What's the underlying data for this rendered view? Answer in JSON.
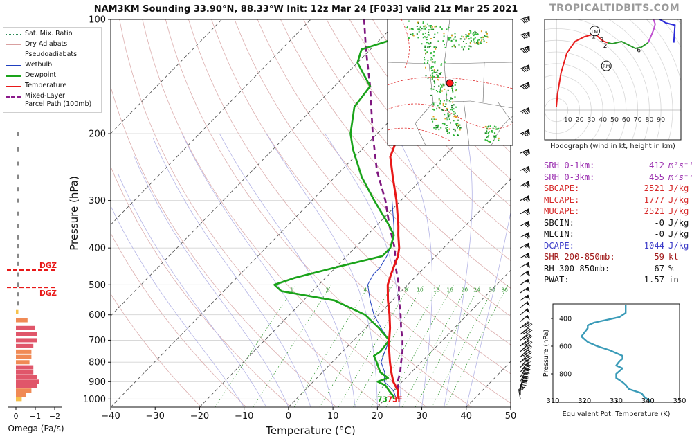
{
  "title": "NAM3KM Sounding 33.90°N, 88.33°W Init: 12z Mar 24 [F033] valid 21z Mar 25 2021",
  "brand": "TROPICALTIDBITS.COM",
  "legend": [
    {
      "label": "Sat. Mix. Ratio",
      "color": "#2e8b57",
      "style": "dotted"
    },
    {
      "label": "Dry Adiabats",
      "color": "#d9a0a0",
      "style": "solid"
    },
    {
      "label": "Pseudoadiabats",
      "color": "#a6a6e0",
      "style": "solid"
    },
    {
      "label": "Wetbulb",
      "color": "#1f3fbf",
      "style": "solid"
    },
    {
      "label": "Dewpoint",
      "color": "#1aa31a",
      "style": "solid"
    },
    {
      "label": "Temperature",
      "color": "#e81818",
      "style": "solid"
    },
    {
      "label": "Mixed-Layer\nParcel Path (100mb)",
      "color": "#8b1a8b",
      "style": "dashed"
    }
  ],
  "colors": {
    "temperature": "#e81818",
    "dewpoint": "#1aa31a",
    "wetbulb": "#1f3fbf",
    "parcel": "#7f167f",
    "dgz": "#e81818",
    "thetae": "#3a9bb8",
    "omega_gray": "#888888"
  },
  "surface": {
    "dewpoint_label": "73",
    "temp_label": "73F",
    "dewpoint_color": "#1aa31a",
    "temp_color": "#e81818"
  },
  "chart_data": [
    {
      "type": "line",
      "name": "skew-t",
      "xlabel": "Temperature (°C)",
      "ylabel": "Pressure (hPa)",
      "xlim": [
        -40,
        50
      ],
      "ylim": [
        1050,
        100
      ],
      "y_scale": "log",
      "xticks": [
        -40,
        -30,
        -20,
        -10,
        0,
        10,
        20,
        30,
        40,
        50
      ],
      "yticks": [
        100,
        200,
        300,
        400,
        500,
        600,
        700,
        800,
        900,
        1000
      ],
      "mixing_ratio_labels": [
        "1",
        "2",
        "4",
        "6",
        "8",
        "10",
        "13",
        "16",
        "20",
        "24",
        "30",
        "36"
      ],
      "series": [
        {
          "name": "Temperature",
          "points": [
            [
              1000,
              23
            ],
            [
              950,
              21
            ],
            [
              900,
              18
            ],
            [
              850,
              15.5
            ],
            [
              800,
              13
            ],
            [
              750,
              10.5
            ],
            [
              700,
              8
            ],
            [
              650,
              5.5
            ],
            [
              600,
              2.5
            ],
            [
              550,
              -1
            ],
            [
              500,
              -4.5
            ],
            [
              470,
              -6
            ],
            [
              450,
              -7
            ],
            [
              420,
              -8.5
            ],
            [
              400,
              -10
            ],
            [
              370,
              -13
            ],
            [
              350,
              -15
            ],
            [
              300,
              -21
            ],
            [
              260,
              -27
            ],
            [
              230,
              -32
            ],
            [
              210,
              -34
            ],
            [
              200,
              -37
            ],
            [
              180,
              -41
            ],
            [
              150,
              -45
            ],
            [
              130,
              -49
            ],
            [
              110,
              -51
            ],
            [
              100,
              -55
            ]
          ]
        },
        {
          "name": "Dewpoint",
          "points": [
            [
              1000,
              22
            ],
            [
              980,
              21
            ],
            [
              950,
              19
            ],
            [
              920,
              17
            ],
            [
              900,
              14.5
            ],
            [
              880,
              16
            ],
            [
              850,
              13
            ],
            [
              800,
              10
            ],
            [
              770,
              8
            ],
            [
              750,
              8.5
            ],
            [
              700,
              8
            ],
            [
              650,
              3
            ],
            [
              600,
              -3
            ],
            [
              550,
              -13
            ],
            [
              520,
              -27
            ],
            [
              500,
              -30
            ],
            [
              480,
              -27
            ],
            [
              450,
              -20
            ],
            [
              420,
              -12
            ],
            [
              400,
              -12
            ],
            [
              370,
              -14
            ],
            [
              350,
              -17
            ],
            [
              300,
              -26
            ],
            [
              260,
              -34
            ],
            [
              220,
              -42
            ],
            [
              200,
              -46
            ],
            [
              170,
              -51
            ],
            [
              150,
              -52
            ],
            [
              130,
              -60
            ],
            [
              120,
              -62
            ],
            [
              110,
              -55
            ],
            [
              100,
              -53
            ]
          ]
        },
        {
          "name": "Wetbulb",
          "points": [
            [
              1000,
              22.5
            ],
            [
              950,
              20
            ],
            [
              900,
              16
            ],
            [
              850,
              14
            ],
            [
              800,
              11
            ],
            [
              750,
              9.5
            ],
            [
              700,
              8
            ],
            [
              650,
              3.5
            ],
            [
              600,
              -1
            ],
            [
              550,
              -5
            ],
            [
              500,
              -9
            ],
            [
              470,
              -10
            ],
            [
              450,
              -10
            ],
            [
              420,
              -11
            ],
            [
              400,
              -12
            ],
            [
              370,
              -14
            ],
            [
              350,
              -16
            ],
            [
              300,
              -22
            ]
          ]
        },
        {
          "name": "Mixed-Layer Parcel Path (100mb)",
          "points": [
            [
              1000,
              23
            ],
            [
              950,
              21
            ],
            [
              900,
              19
            ],
            [
              850,
              17.5
            ],
            [
              800,
              15.5
            ],
            [
              750,
              13.5
            ],
            [
              700,
              11
            ],
            [
              650,
              8
            ],
            [
              600,
              5
            ],
            [
              550,
              1.5
            ],
            [
              500,
              -2
            ],
            [
              450,
              -6.5
            ],
            [
              400,
              -11
            ],
            [
              350,
              -17
            ],
            [
              300,
              -23.5
            ],
            [
              250,
              -32
            ],
            [
              200,
              -41
            ],
            [
              150,
              -52
            ],
            [
              120,
              -61
            ],
            [
              100,
              -68
            ]
          ]
        }
      ]
    },
    {
      "type": "line",
      "name": "hodograph",
      "title": "Hodograph (wind in kt, height in km)",
      "x_tick_labels": [
        "10",
        "20",
        "30",
        "40",
        "50",
        "60",
        "70",
        "80",
        "90"
      ],
      "point_labels": [
        {
          "label": "1",
          "u": 32,
          "v": 64
        },
        {
          "label": "2",
          "u": 42,
          "v": 56
        },
        {
          "label": "3",
          "u": 39,
          "v": 61
        },
        {
          "label": "6",
          "u": 71,
          "v": 52
        },
        {
          "label": "9",
          "u": 82,
          "v": 89
        }
      ],
      "storm_motion": [
        {
          "label": "LM",
          "u": 33,
          "v": 68
        },
        {
          "label": "RM",
          "u": 43,
          "v": 38
        }
      ],
      "points": [
        [
          0,
          3
        ],
        [
          1,
          14
        ],
        [
          4,
          32
        ],
        [
          9,
          49
        ],
        [
          16,
          59
        ],
        [
          24,
          63
        ],
        [
          31,
          65
        ],
        [
          35,
          64
        ],
        [
          38,
          61
        ],
        [
          41,
          59
        ],
        [
          44,
          58
        ],
        [
          48,
          57
        ],
        [
          56,
          59
        ],
        [
          62,
          56
        ],
        [
          68,
          53
        ],
        [
          73,
          54
        ],
        [
          79,
          58
        ],
        [
          82,
          65
        ],
        [
          84,
          70
        ],
        [
          85,
          74
        ],
        [
          82,
          82
        ],
        [
          83,
          86
        ],
        [
          89,
          78
        ],
        [
          94,
          75
        ],
        [
          102,
          73
        ],
        [
          101,
          58
        ]
      ]
    },
    {
      "type": "table",
      "name": "parameters",
      "rows": [
        {
          "name": "SRH 0-1km:",
          "value": "412",
          "unit": "m²s⁻²",
          "color": "#9b2fb0"
        },
        {
          "name": "SRH 0-3km:",
          "value": "455",
          "unit": "m²s⁻²",
          "color": "#9b2fb0"
        },
        {
          "name": "SBCAPE:",
          "value": "2521",
          "unit": "J/kg",
          "color": "#d62828"
        },
        {
          "name": "MLCAPE:",
          "value": "1777",
          "unit": "J/kg",
          "color": "#d62828"
        },
        {
          "name": "MUCAPE:",
          "value": "2521",
          "unit": "J/kg",
          "color": "#d62828"
        },
        {
          "name": "SBCIN:",
          "value": "-0",
          "unit": "J/kg",
          "color": "#111111"
        },
        {
          "name": "MLCIN:",
          "value": "-0",
          "unit": "J/kg",
          "color": "#111111"
        },
        {
          "name": "DCAPE:",
          "value": "1044",
          "unit": "J/kg",
          "color": "#3a3ac8"
        },
        {
          "name": "SHR 200-850mb:",
          "value": "59",
          "unit": "kt",
          "color": "#a11a1a"
        },
        {
          "name": "RH 300-850mb:",
          "value": "67",
          "unit": "%",
          "color": "#111111"
        },
        {
          "name": "PWAT:",
          "value": "1.57",
          "unit": "in",
          "color": "#111111"
        }
      ]
    },
    {
      "type": "line",
      "name": "theta-e",
      "xlabel": "Equivalent Pot. Temperature (K)",
      "ylabel": "Pressure (hPa)",
      "xlim": [
        310,
        350
      ],
      "xticks": [
        310,
        320,
        330,
        340,
        350
      ],
      "yticks": [
        400,
        600,
        800
      ],
      "points": [
        [
          300,
          333
        ],
        [
          360,
          333
        ],
        [
          390,
          331
        ],
        [
          410,
          327
        ],
        [
          430,
          323
        ],
        [
          450,
          321
        ],
        [
          470,
          321
        ],
        [
          500,
          320
        ],
        [
          530,
          319
        ],
        [
          570,
          321
        ],
        [
          600,
          324
        ],
        [
          630,
          328
        ],
        [
          650,
          330
        ],
        [
          670,
          332
        ],
        [
          690,
          332
        ],
        [
          710,
          331
        ],
        [
          740,
          330
        ],
        [
          760,
          332
        ],
        [
          780,
          331
        ],
        [
          800,
          330
        ],
        [
          830,
          330
        ],
        [
          860,
          332
        ],
        [
          880,
          333
        ],
        [
          910,
          334
        ],
        [
          940,
          338
        ],
        [
          970,
          339
        ],
        [
          1000,
          341
        ]
      ]
    },
    {
      "type": "bar",
      "name": "omega",
      "xlabel": "Omega (Pa/s)",
      "xticks": [
        "0",
        "−1",
        "−2"
      ],
      "dgz_label": "DGZ",
      "dgz_levels": [
        457,
        508
      ],
      "points": [
        [
          1000,
          -0.3
        ],
        [
          975,
          -0.5
        ],
        [
          950,
          -0.8
        ],
        [
          925,
          -1.1
        ],
        [
          900,
          -1.2
        ],
        [
          875,
          -1.1
        ],
        [
          850,
          -0.9
        ],
        [
          825,
          -0.9
        ],
        [
          800,
          -0.7
        ],
        [
          775,
          -0.8
        ],
        [
          750,
          -0.8
        ],
        [
          725,
          -0.9
        ],
        [
          700,
          -1.1
        ],
        [
          675,
          -1.1
        ],
        [
          650,
          -1.0
        ],
        [
          620,
          -0.6
        ],
        [
          590,
          -0.1
        ],
        [
          560,
          0.1
        ],
        [
          530,
          0.15
        ],
        [
          500,
          0.15
        ],
        [
          470,
          0.2
        ],
        [
          440,
          0.25
        ],
        [
          420,
          0.2
        ],
        [
          395,
          0.25
        ],
        [
          375,
          0.15
        ],
        [
          350,
          0.2
        ],
        [
          325,
          0.2
        ],
        [
          300,
          0.15
        ],
        [
          280,
          0.1
        ],
        [
          260,
          0.1
        ],
        [
          240,
          0.1
        ],
        [
          220,
          0.15
        ],
        [
          200,
          0.1
        ],
        [
          170,
          -0.05
        ],
        [
          140,
          -0.3
        ]
      ]
    },
    {
      "type": "table",
      "name": "wind-barbs",
      "columns": [
        "pressure_hPa",
        "direction_deg",
        "speed_kt"
      ],
      "rows": [
        [
          1000,
          170,
          20
        ],
        [
          975,
          180,
          35
        ],
        [
          950,
          190,
          40
        ],
        [
          925,
          200,
          40
        ],
        [
          900,
          205,
          40
        ],
        [
          875,
          210,
          40
        ],
        [
          850,
          215,
          45
        ],
        [
          825,
          220,
          45
        ],
        [
          800,
          225,
          45
        ],
        [
          775,
          225,
          45
        ],
        [
          750,
          225,
          45
        ],
        [
          725,
          230,
          45
        ],
        [
          700,
          230,
          45
        ],
        [
          675,
          230,
          45
        ],
        [
          650,
          230,
          45
        ],
        [
          625,
          230,
          50
        ],
        [
          600,
          230,
          50
        ],
        [
          575,
          230,
          50
        ],
        [
          550,
          235,
          55
        ],
        [
          525,
          235,
          55
        ],
        [
          500,
          235,
          55
        ],
        [
          475,
          235,
          60
        ],
        [
          450,
          240,
          60
        ],
        [
          425,
          240,
          65
        ],
        [
          400,
          240,
          65
        ],
        [
          375,
          240,
          70
        ],
        [
          350,
          240,
          70
        ],
        [
          325,
          240,
          70
        ],
        [
          300,
          240,
          75
        ],
        [
          275,
          240,
          75
        ],
        [
          250,
          245,
          80
        ],
        [
          225,
          245,
          80
        ],
        [
          200,
          245,
          85
        ],
        [
          175,
          245,
          85
        ],
        [
          150,
          245,
          90
        ],
        [
          135,
          245,
          90
        ],
        [
          120,
          250,
          90
        ],
        [
          110,
          250,
          90
        ],
        [
          100,
          250,
          90
        ]
      ]
    }
  ]
}
